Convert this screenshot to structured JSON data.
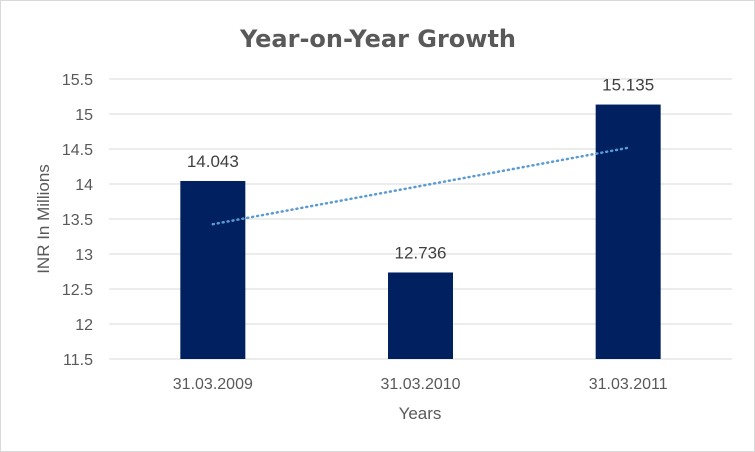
{
  "chart_data": {
    "type": "bar",
    "title": "Year-on-Year Growth",
    "xlabel": "Years",
    "ylabel": "INR In Millions",
    "categories": [
      "31.03.2009",
      "31.03.2010",
      "31.03.2011"
    ],
    "values": [
      14.043,
      12.736,
      15.135
    ],
    "data_labels": [
      "14.043",
      "12.736",
      "15.135"
    ],
    "ylim": [
      11.5,
      15.5
    ],
    "yticks": [
      "11.5",
      "12",
      "12.5",
      "13",
      "13.5",
      "14",
      "14.5",
      "15",
      "15.5"
    ],
    "grid": true,
    "trendline": {
      "type": "linear",
      "style": "dotted",
      "color": "#5B9BD5"
    },
    "bar_color": "#002060",
    "legend": "none"
  }
}
